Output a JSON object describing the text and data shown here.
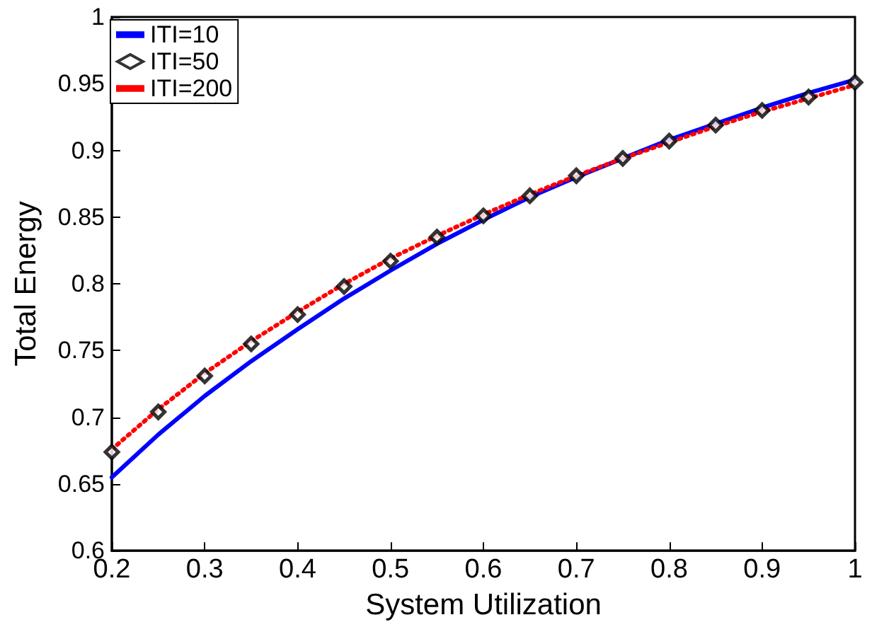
{
  "chart_data": {
    "type": "line",
    "xlabel": "System Utilization",
    "ylabel": "Total Energy",
    "x": [
      0.2,
      0.25,
      0.3,
      0.35,
      0.4,
      0.45,
      0.5,
      0.55,
      0.6,
      0.65,
      0.7,
      0.75,
      0.8,
      0.85,
      0.9,
      0.95,
      1.0
    ],
    "series": [
      {
        "name": "ITI=10",
        "color": "#0000ff",
        "line_style": "solid",
        "marker": "none",
        "values": [
          0.655,
          0.687,
          0.716,
          0.742,
          0.766,
          0.789,
          0.81,
          0.83,
          0.848,
          0.865,
          0.88,
          0.894,
          0.908,
          0.92,
          0.932,
          0.943,
          0.953
        ]
      },
      {
        "name": "ITI=50",
        "color": "#000000",
        "type": "scatter",
        "marker": "diamond",
        "values": [
          0.674,
          0.704,
          0.731,
          0.755,
          0.777,
          0.798,
          0.817,
          0.835,
          0.851,
          0.866,
          0.881,
          0.894,
          0.907,
          0.919,
          0.93,
          0.94,
          0.951
        ]
      },
      {
        "name": "ITI=200",
        "color": "#ff0000",
        "line_style": "dotted",
        "marker": "none",
        "values": [
          0.676,
          0.706,
          0.733,
          0.757,
          0.779,
          0.8,
          0.819,
          0.836,
          0.852,
          0.867,
          0.881,
          0.894,
          0.906,
          0.918,
          0.929,
          0.939,
          0.949
        ]
      }
    ],
    "xlim": [
      0.2,
      1
    ],
    "xticks": [
      0.2,
      0.3,
      0.4,
      0.5,
      0.6,
      0.7,
      0.8,
      0.9,
      1
    ],
    "ylim": [
      0.6,
      1
    ],
    "yticks": [
      0.6,
      0.65,
      0.7,
      0.75,
      0.8,
      0.85,
      0.9,
      0.95,
      1
    ],
    "grid": false,
    "legend": "top left"
  }
}
